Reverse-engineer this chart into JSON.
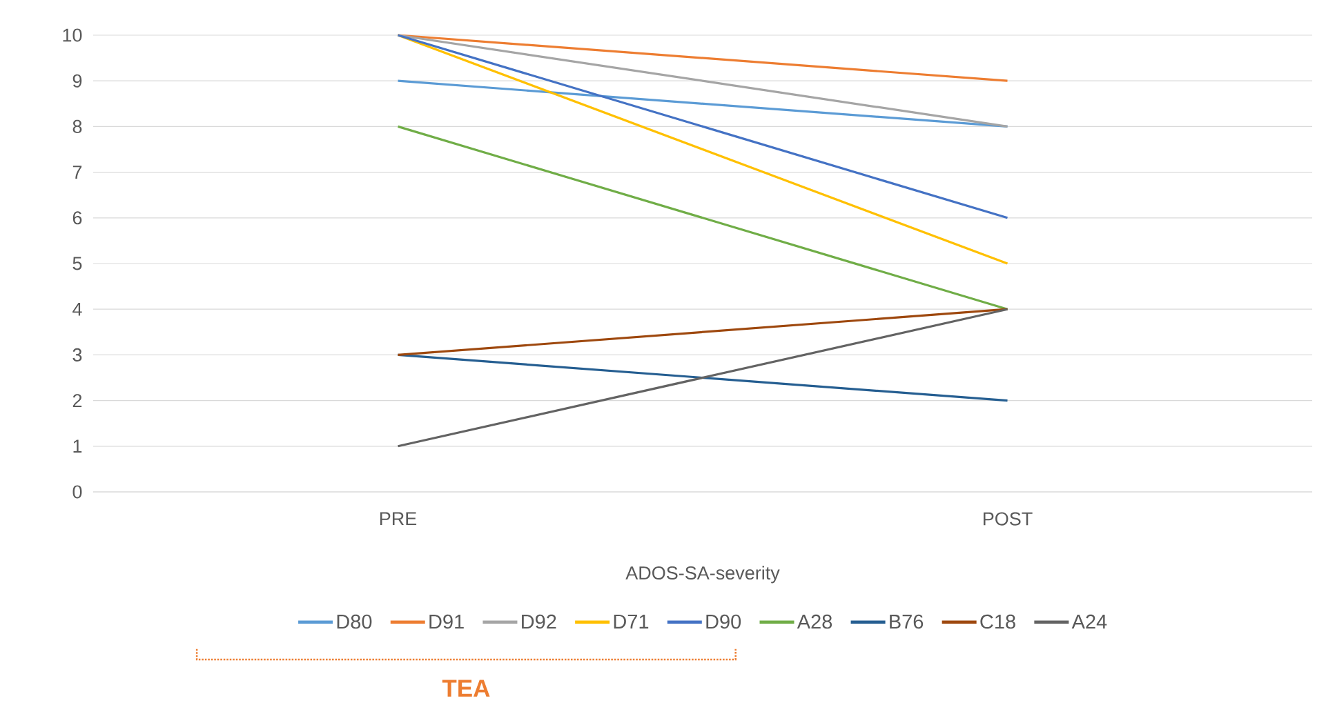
{
  "chart_data": {
    "type": "line",
    "categories": [
      "PRE",
      "POST"
    ],
    "xlabel": "ADOS-SA-severity",
    "ylim": [
      0,
      10
    ],
    "yticks": [
      0,
      1,
      2,
      3,
      4,
      5,
      6,
      7,
      8,
      9,
      10
    ],
    "grid": "y",
    "legend": "bottom",
    "marker": "none",
    "series": [
      {
        "name": "D80",
        "color": "#5b9bd5",
        "values": [
          9,
          8
        ]
      },
      {
        "name": "D91",
        "color": "#ed7d31",
        "values": [
          10,
          9
        ]
      },
      {
        "name": "D92",
        "color": "#a5a5a5",
        "values": [
          10,
          8
        ]
      },
      {
        "name": "D71",
        "color": "#ffc000",
        "values": [
          10,
          5
        ]
      },
      {
        "name": "D90",
        "color": "#4472c4",
        "values": [
          10,
          6
        ]
      },
      {
        "name": "A28",
        "color": "#70ad47",
        "values": [
          8,
          4
        ]
      },
      {
        "name": "B76",
        "color": "#255e91",
        "values": [
          3,
          2
        ]
      },
      {
        "name": "C18",
        "color": "#9e480e",
        "values": [
          3,
          4
        ]
      },
      {
        "name": "A24",
        "color": "#636363",
        "values": [
          1,
          4
        ]
      }
    ],
    "annotations": [
      "TEA"
    ]
  }
}
